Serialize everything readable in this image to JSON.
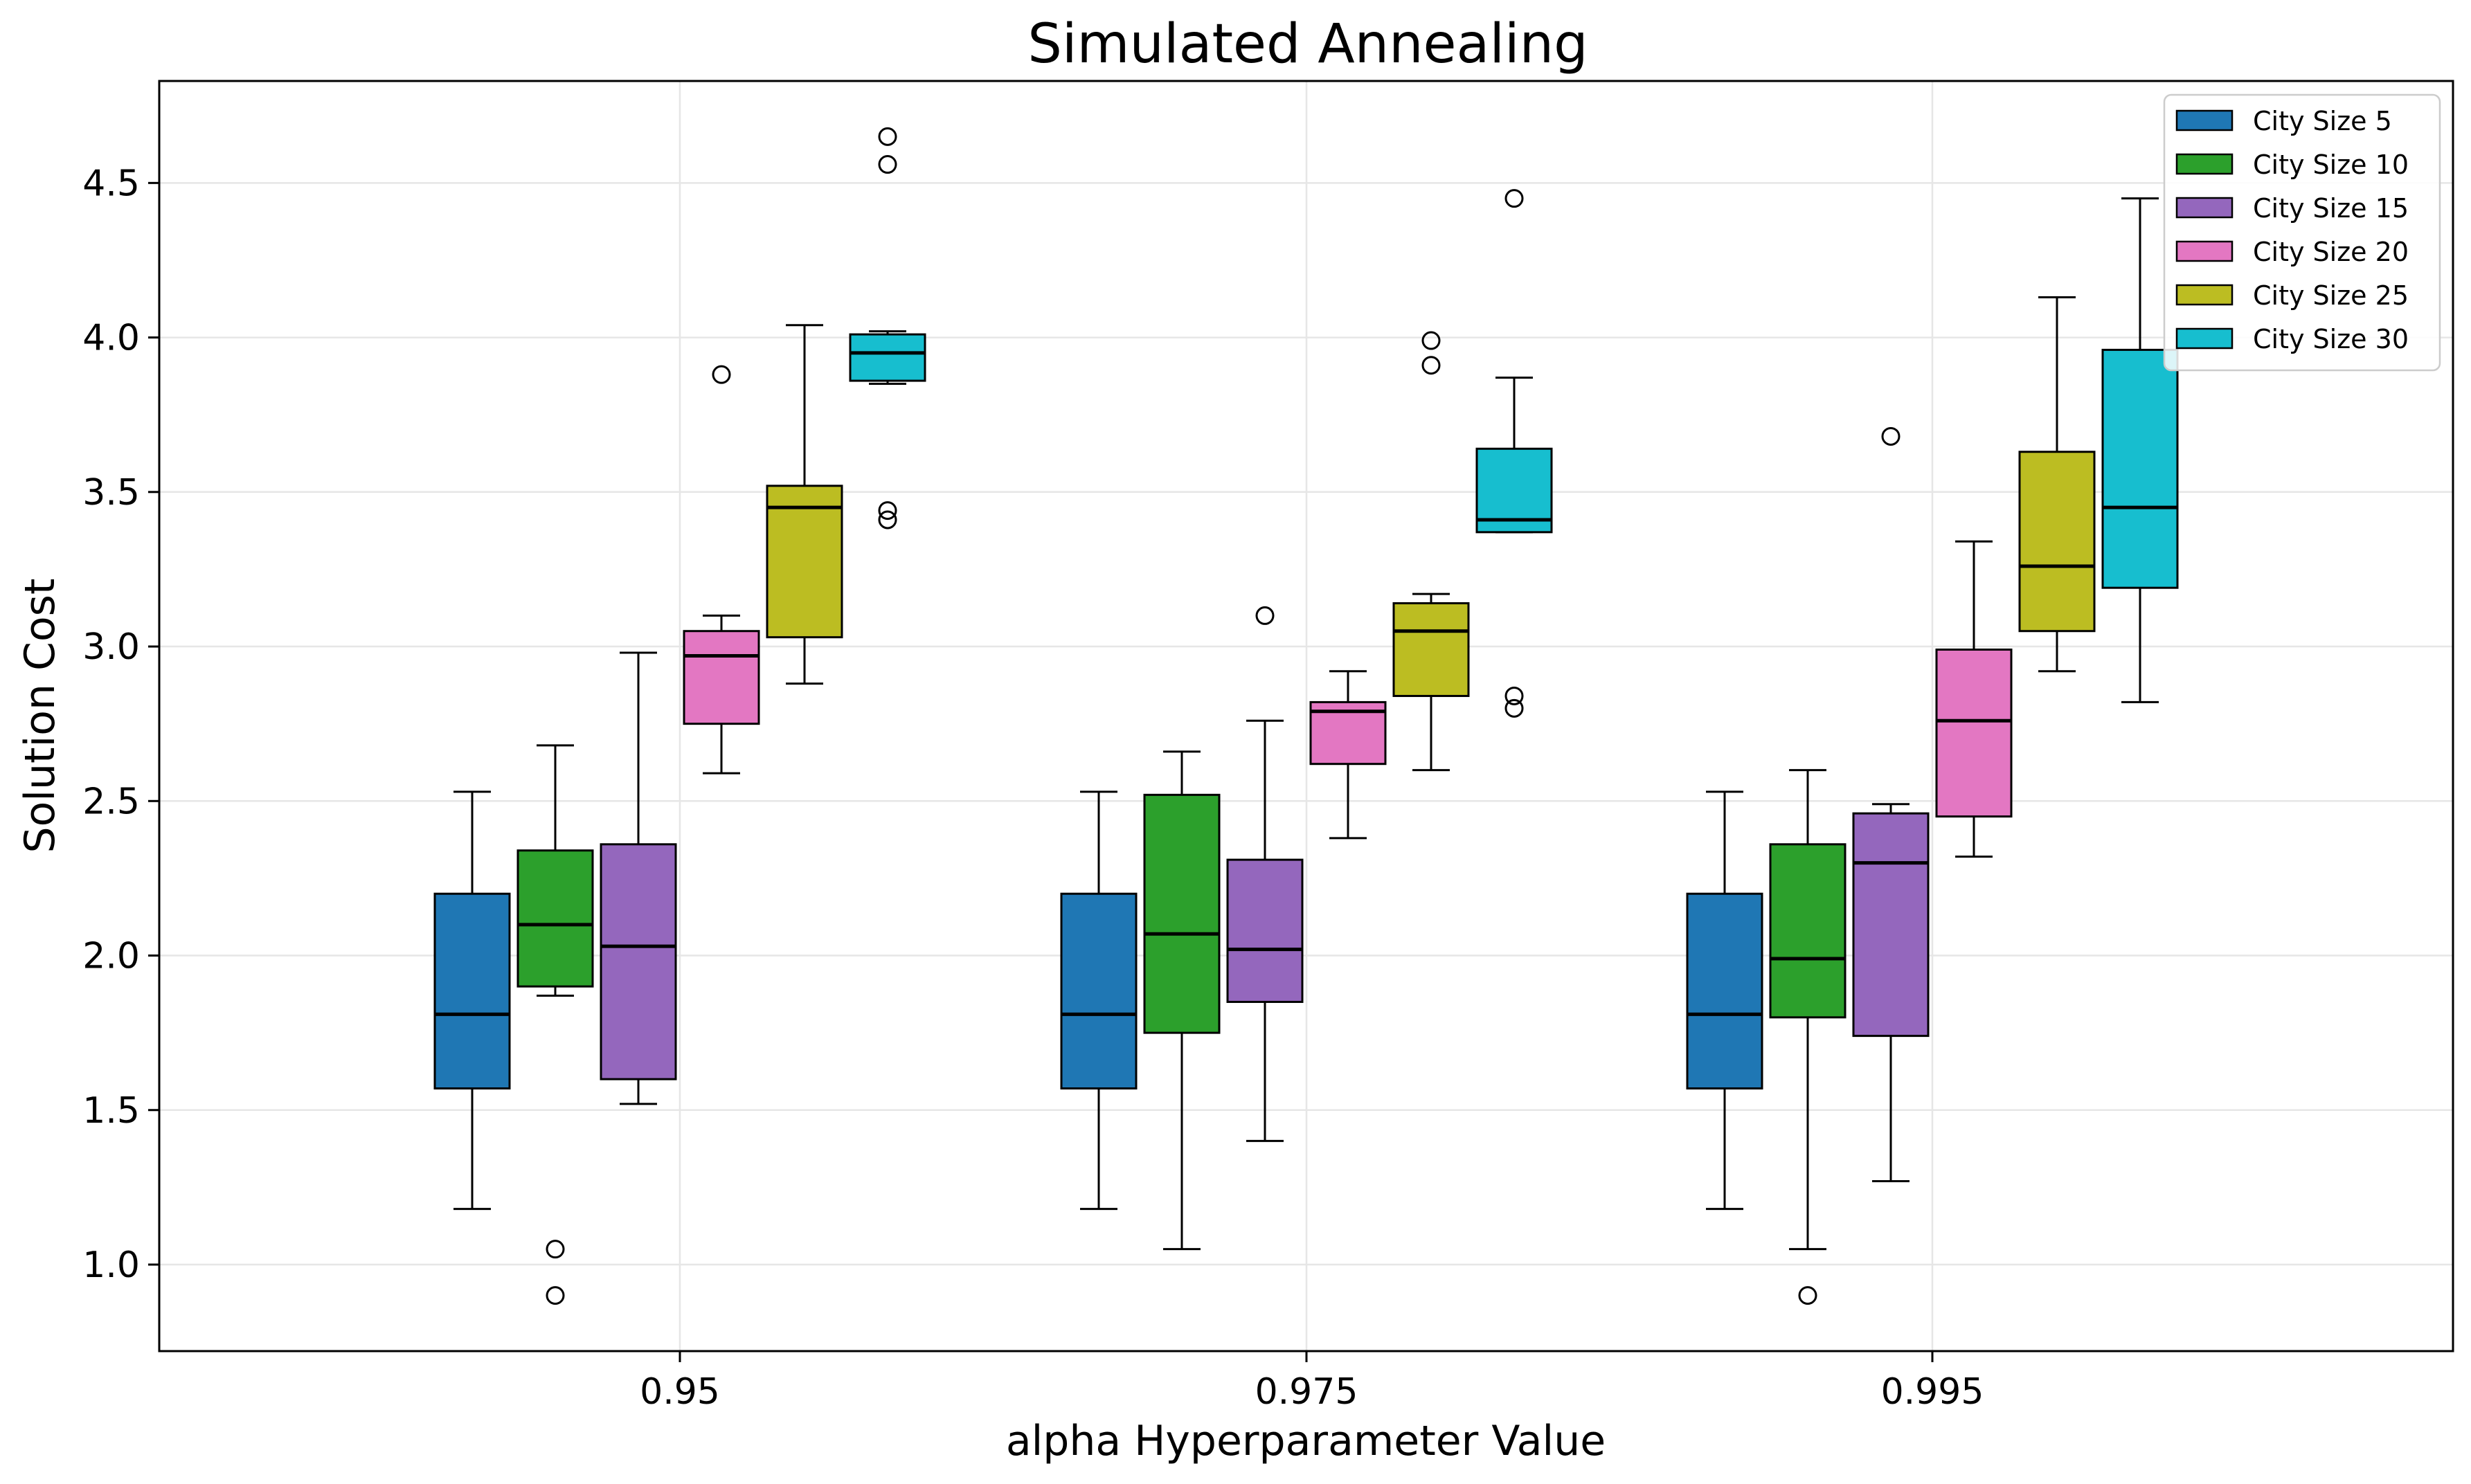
{
  "chart_data": {
    "type": "box",
    "title": "Simulated Annealing",
    "xlabel": "alpha Hyperparameter Value",
    "ylabel": "Solution Cost",
    "ylim": [
      0.72,
      4.83
    ],
    "yticks": [
      "1.0",
      "1.5",
      "2.0",
      "2.5",
      "3.0",
      "3.5",
      "4.0",
      "4.5"
    ],
    "categories": [
      "0.95",
      "0.975",
      "0.995"
    ],
    "grid": true,
    "legend_position": "top-right",
    "series": [
      {
        "name": "City Size 5",
        "color": "#1f77b4",
        "boxes": [
          {
            "whisker_low": 1.18,
            "q1": 1.57,
            "median": 1.81,
            "q3": 2.2,
            "whisker_high": 2.53,
            "outliers": []
          },
          {
            "whisker_low": 1.18,
            "q1": 1.57,
            "median": 1.81,
            "q3": 2.2,
            "whisker_high": 2.53,
            "outliers": []
          },
          {
            "whisker_low": 1.18,
            "q1": 1.57,
            "median": 1.81,
            "q3": 2.2,
            "whisker_high": 2.53,
            "outliers": []
          }
        ]
      },
      {
        "name": "City Size 10",
        "color": "#2ca02c",
        "boxes": [
          {
            "whisker_low": 1.87,
            "q1": 1.9,
            "median": 2.1,
            "q3": 2.34,
            "whisker_high": 2.68,
            "outliers": [
              1.05,
              0.9
            ]
          },
          {
            "whisker_low": 1.05,
            "q1": 1.75,
            "median": 2.07,
            "q3": 2.52,
            "whisker_high": 2.66,
            "outliers": []
          },
          {
            "whisker_low": 1.05,
            "q1": 1.8,
            "median": 1.99,
            "q3": 2.36,
            "whisker_high": 2.6,
            "outliers": [
              0.9
            ]
          }
        ]
      },
      {
        "name": "City Size 15",
        "color": "#9467bd",
        "boxes": [
          {
            "whisker_low": 1.52,
            "q1": 1.6,
            "median": 2.03,
            "q3": 2.36,
            "whisker_high": 2.98,
            "outliers": []
          },
          {
            "whisker_low": 1.4,
            "q1": 1.85,
            "median": 2.02,
            "q3": 2.31,
            "whisker_high": 2.76,
            "outliers": [
              3.1
            ]
          },
          {
            "whisker_low": 1.27,
            "q1": 1.74,
            "median": 2.3,
            "q3": 2.46,
            "whisker_high": 2.49,
            "outliers": [
              3.68
            ]
          }
        ]
      },
      {
        "name": "City Size 20",
        "color": "#e377c2",
        "boxes": [
          {
            "whisker_low": 2.59,
            "q1": 2.75,
            "median": 2.97,
            "q3": 3.05,
            "whisker_high": 3.1,
            "outliers": [
              3.88
            ]
          },
          {
            "whisker_low": 2.38,
            "q1": 2.62,
            "median": 2.79,
            "q3": 2.82,
            "whisker_high": 2.92,
            "outliers": []
          },
          {
            "whisker_low": 2.32,
            "q1": 2.45,
            "median": 2.76,
            "q3": 2.99,
            "whisker_high": 3.34,
            "outliers": []
          }
        ]
      },
      {
        "name": "City Size 25",
        "color": "#bcbd22",
        "boxes": [
          {
            "whisker_low": 2.88,
            "q1": 3.03,
            "median": 3.45,
            "q3": 3.52,
            "whisker_high": 4.04,
            "outliers": []
          },
          {
            "whisker_low": 2.6,
            "q1": 2.84,
            "median": 3.05,
            "q3": 3.14,
            "whisker_high": 3.17,
            "outliers": [
              3.99,
              3.91
            ]
          },
          {
            "whisker_low": 2.92,
            "q1": 3.05,
            "median": 3.26,
            "q3": 3.63,
            "whisker_high": 4.13,
            "outliers": []
          }
        ]
      },
      {
        "name": "City Size 30",
        "color": "#17becf",
        "boxes": [
          {
            "whisker_low": 3.85,
            "q1": 3.86,
            "median": 3.95,
            "q3": 4.01,
            "whisker_high": 4.02,
            "outliers": [
              4.65,
              4.56,
              3.44,
              3.41
            ]
          },
          {
            "whisker_low": 3.37,
            "q1": 3.37,
            "median": 3.41,
            "q3": 3.64,
            "whisker_high": 3.87,
            "outliers": [
              4.45,
              2.84,
              2.8
            ]
          },
          {
            "whisker_low": 2.82,
            "q1": 3.19,
            "median": 3.45,
            "q3": 3.96,
            "whisker_high": 4.45,
            "outliers": []
          }
        ]
      }
    ]
  }
}
